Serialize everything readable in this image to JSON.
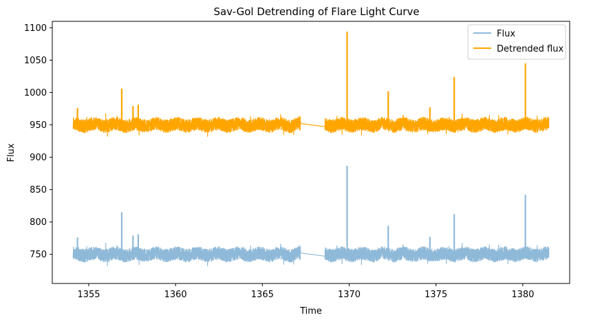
{
  "chart_data": {
    "type": "line",
    "title": "Sav-Gol Detrending of Flare Light Curve",
    "xlabel": "Time",
    "ylabel": "Flux",
    "xlim": [
      1352.9,
      1382.7
    ],
    "ylim": [
      705,
      1110
    ],
    "x_ticks": [
      1355,
      1360,
      1365,
      1370,
      1375,
      1380
    ],
    "y_ticks": [
      750,
      800,
      850,
      900,
      950,
      1000,
      1050,
      1100
    ],
    "grid": false,
    "legend_position": "top-right",
    "segments": [
      [
        1354.1,
        1367.2
      ],
      [
        1368.6,
        1381.5
      ]
    ],
    "series": [
      {
        "name": "Flux",
        "color": "#8fb9d8",
        "baseline": 750,
        "noise_amplitude": 10,
        "flares": [
          {
            "x": 1354.35,
            "peak": 776
          },
          {
            "x": 1356.9,
            "peak": 815
          },
          {
            "x": 1357.55,
            "peak": 779
          },
          {
            "x": 1357.85,
            "peak": 781
          },
          {
            "x": 1369.88,
            "peak": 887
          },
          {
            "x": 1372.25,
            "peak": 794
          },
          {
            "x": 1374.65,
            "peak": 777
          },
          {
            "x": 1376.05,
            "peak": 812
          },
          {
            "x": 1380.15,
            "peak": 842
          }
        ]
      },
      {
        "name": "Detrended flux",
        "color": "#ffa500",
        "baseline": 950,
        "noise_amplitude": 10,
        "flares": [
          {
            "x": 1354.35,
            "peak": 976
          },
          {
            "x": 1356.9,
            "peak": 1006
          },
          {
            "x": 1357.55,
            "peak": 979
          },
          {
            "x": 1357.85,
            "peak": 981
          },
          {
            "x": 1369.88,
            "peak": 1094
          },
          {
            "x": 1372.25,
            "peak": 1002
          },
          {
            "x": 1374.65,
            "peak": 977
          },
          {
            "x": 1376.05,
            "peak": 1024
          },
          {
            "x": 1380.15,
            "peak": 1045
          }
        ]
      }
    ]
  }
}
